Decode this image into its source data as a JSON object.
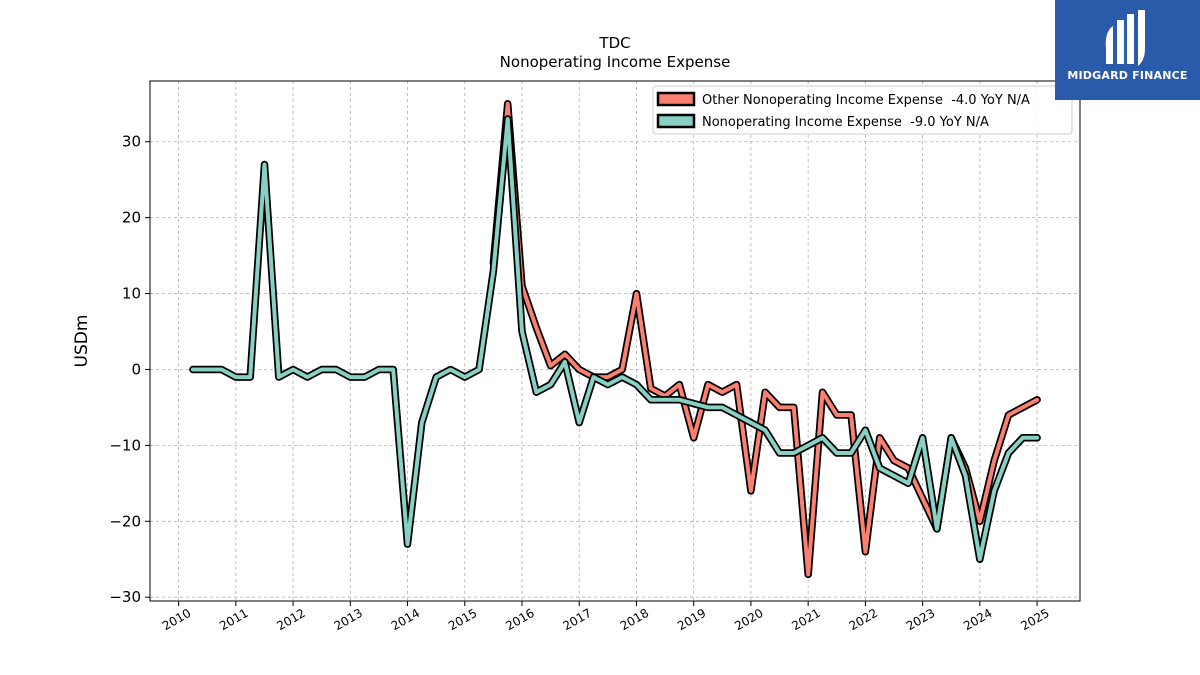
{
  "brand": {
    "name": "MIDGARD FINANCE",
    "color": "#2a5aaa"
  },
  "chart_data": {
    "type": "line",
    "title": "TDC",
    "subtitle": "Nonoperating Income Expense",
    "xlabel": "",
    "ylabel": "USDm",
    "xlim": [
      2009.5,
      2025.75
    ],
    "ylim": [
      -30.5,
      38
    ],
    "xticks": [
      "2010",
      "2011",
      "2012",
      "2013",
      "2014",
      "2015",
      "2016",
      "2017",
      "2018",
      "2019",
      "2020",
      "2021",
      "2022",
      "2023",
      "2024",
      "2025"
    ],
    "yticks": [
      30,
      20,
      10,
      0,
      -10,
      -20,
      -30
    ],
    "ytick_labels": [
      "30",
      "20",
      "10",
      "0",
      "−10",
      "−20",
      "−30"
    ],
    "grid": true,
    "legend_position": "top-right",
    "series": [
      {
        "name": "Other Nonoperating Income Expense  -4.0 YoY N/A",
        "color": "#fa8072",
        "x": [
          2015.5,
          2015.75,
          2016.0,
          2016.25,
          2016.5,
          2016.75,
          2017.0,
          2017.25,
          2017.5,
          2017.75,
          2018.0,
          2018.25,
          2018.5,
          2018.75,
          2019.0,
          2019.25,
          2019.5,
          2019.75,
          2020.0,
          2020.25,
          2020.5,
          2020.75,
          2021.0,
          2021.25,
          2021.5,
          2021.75,
          2022.0,
          2022.25,
          2022.5,
          2022.75,
          2023.0,
          2023.25,
          2023.5,
          2023.75,
          2024.0,
          2024.25,
          2024.5,
          2024.75,
          2025.0
        ],
        "values": [
          14.0,
          35.0,
          11.0,
          5.5,
          0.5,
          2.0,
          0.0,
          -1.0,
          -1.0,
          0.0,
          10.0,
          -2.5,
          -3.5,
          -2.0,
          -9.0,
          -2.0,
          -3.0,
          -2.0,
          -16.0,
          -3.0,
          -5.0,
          -5.0,
          -27.0,
          -3.0,
          -6.0,
          -6.0,
          -24.0,
          -9.0,
          -12.0,
          -13.0,
          -17.0,
          -21.0,
          -9.0,
          -13.0,
          -20.0,
          -12.0,
          -6.0,
          -5.0,
          -4.0
        ]
      },
      {
        "name": "Nonoperating Income Expense  -9.0 YoY N/A",
        "color": "#88d0c4",
        "x": [
          2010.25,
          2010.5,
          2010.75,
          2011.0,
          2011.25,
          2011.5,
          2011.75,
          2012.0,
          2012.25,
          2012.5,
          2012.75,
          2013.0,
          2013.25,
          2013.5,
          2013.75,
          2014.0,
          2014.25,
          2014.5,
          2014.75,
          2015.0,
          2015.25,
          2015.5,
          2015.75,
          2016.0,
          2016.25,
          2016.5,
          2016.75,
          2017.0,
          2017.25,
          2017.5,
          2017.75,
          2018.0,
          2018.25,
          2018.5,
          2018.75,
          2019.0,
          2019.25,
          2019.5,
          2019.75,
          2020.0,
          2020.25,
          2020.5,
          2020.75,
          2021.0,
          2021.25,
          2021.5,
          2021.75,
          2022.0,
          2022.25,
          2022.5,
          2022.75,
          2023.0,
          2023.25,
          2023.5,
          2023.75,
          2024.0,
          2024.25,
          2024.5,
          2024.75,
          2025.0
        ],
        "values": [
          0.0,
          0.0,
          0.0,
          -1.0,
          -1.0,
          27.0,
          -1.0,
          0.0,
          -1.0,
          0.0,
          0.0,
          -1.0,
          -1.0,
          0.0,
          0.0,
          -23.0,
          -7.0,
          -1.0,
          0.0,
          -1.0,
          0.0,
          13.0,
          33.0,
          5.0,
          -3.0,
          -2.0,
          1.0,
          -7.0,
          -1.0,
          -2.0,
          -1.0,
          -2.0,
          -4.0,
          -4.0,
          -4.0,
          -4.5,
          -5.0,
          -5.0,
          -6.0,
          -7.0,
          -8.0,
          -11.0,
          -11.0,
          -10.0,
          -9.0,
          -11.0,
          -11.0,
          -8.0,
          -13.0,
          -14.0,
          -15.0,
          -9.0,
          -21.0,
          -9.0,
          -14.0,
          -25.0,
          -16.0,
          -11.0,
          -9.0,
          -9.0
        ]
      }
    ]
  }
}
